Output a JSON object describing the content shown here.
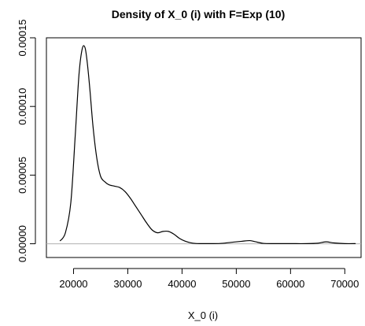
{
  "chart_data": {
    "type": "line",
    "title": "Density of X_0 (i) with F=Exp (10)",
    "xlabel": "X_0 (i)",
    "ylabel": "",
    "xlim": [
      15000,
      73000
    ],
    "ylim": [
      -1e-05,
      0.00015
    ],
    "xticks": [
      20000,
      30000,
      40000,
      50000,
      60000,
      70000
    ],
    "xtick_labels": [
      "20000",
      "30000",
      "40000",
      "50000",
      "60000",
      "70000"
    ],
    "yticks": [
      0,
      5e-05,
      0.0001,
      0.00015
    ],
    "ytick_labels": [
      "0.00000",
      "0.00005",
      "0.00010",
      "0.00015"
    ],
    "baseline": 0,
    "grid": false,
    "series": [
      {
        "line_color": "#000000",
        "x": [
          17500,
          18500,
          19500,
          20300,
          21000,
          21600,
          22100,
          22500,
          23000,
          23600,
          24300,
          25000,
          25800,
          26500,
          27500,
          28500,
          29500,
          30500,
          31500,
          32500,
          33500,
          34500,
          35500,
          36500,
          37500,
          38500,
          39500,
          40500,
          41500,
          42500,
          43500,
          45000,
          47000,
          49000,
          51000,
          52500,
          53500,
          55000,
          57000,
          60000,
          63000,
          65000,
          66500,
          68000,
          70000,
          72000
        ],
        "y": [
          2e-06,
          8e-06,
          3e-05,
          7.8e-05,
          0.000123,
          0.000142,
          0.000143,
          0.000133,
          0.000113,
          8.5e-05,
          6.2e-05,
          4.9e-05,
          4.5e-05,
          4.3e-05,
          4.2e-05,
          4.1e-05,
          3.8e-05,
          3.3e-05,
          2.7e-05,
          2.1e-05,
          1.5e-05,
          1e-05,
          8e-06,
          9e-06,
          9e-06,
          7e-06,
          4e-06,
          2e-06,
          8e-07,
          2e-07,
          1e-07,
          1e-07,
          2e-07,
          1e-06,
          1.8e-06,
          2.3e-06,
          1.5e-06,
          3e-07,
          1e-07,
          1e-07,
          1e-07,
          4e-07,
          1.4e-06,
          6e-07,
          1e-07,
          1e-07
        ]
      }
    ]
  }
}
